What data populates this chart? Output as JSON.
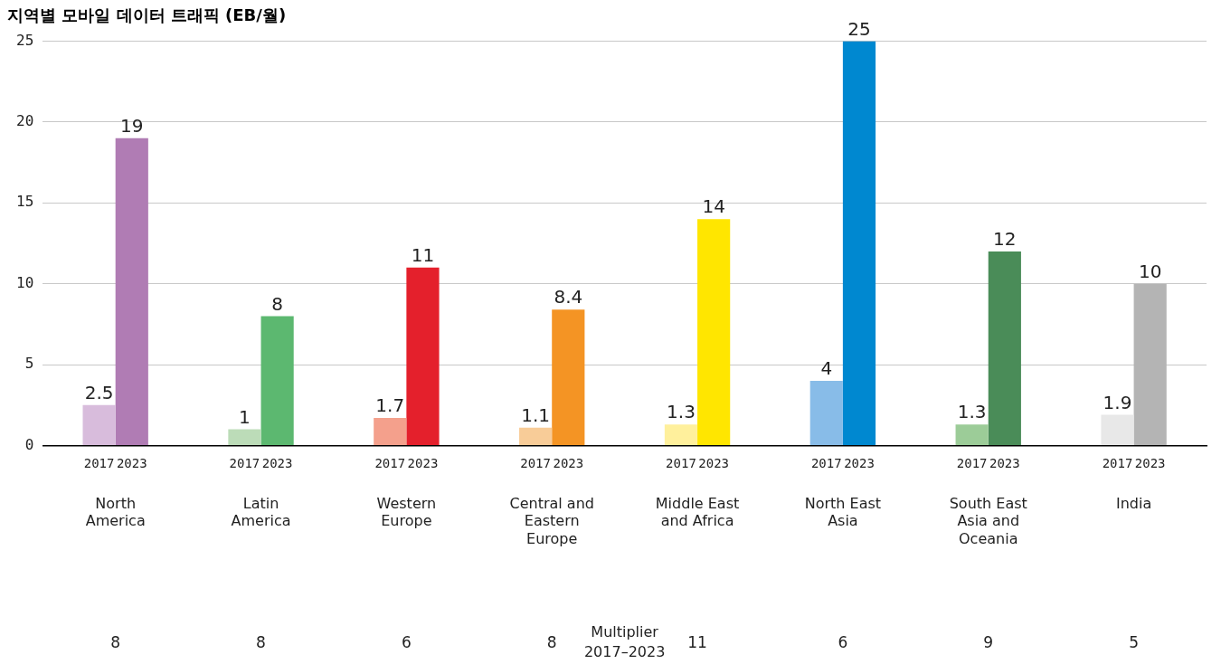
{
  "chart_data": {
    "type": "bar",
    "title": "지역별 모바일 데이터 트래픽 (EB/월)",
    "categories": [
      "North America",
      "Latin America",
      "Western Europe",
      "Central and Eastern Europe",
      "Middle East and Africa",
      "North East Asia",
      "South East Asia and Oceania",
      "India"
    ],
    "series": [
      {
        "name": "2017",
        "colors": [
          "#d8bcdc",
          "#bcdcb8",
          "#f4a08c",
          "#f8cc98",
          "#fff09c",
          "#88bce8",
          "#9ccc98",
          "#e8e8e8"
        ],
        "values": [
          2.5,
          1,
          1.7,
          1.1,
          1.3,
          4,
          1.3,
          1.9
        ]
      },
      {
        "name": "2023",
        "colors": [
          "#b07cb4",
          "#5cb870",
          "#e4202c",
          "#f49424",
          "#ffe600",
          "#0088d0",
          "#4a8c58",
          "#b4b4b4"
        ],
        "values": [
          19,
          8,
          11,
          8.4,
          14,
          25,
          12,
          10
        ]
      }
    ],
    "ylim": [
      0,
      25
    ],
    "yticks": [
      0,
      5,
      10,
      15,
      20,
      25
    ],
    "grid": "y",
    "legend": false,
    "data_labels": true,
    "annotations": [
      "Multiplier 2017–2023",
      "8",
      "8",
      "6",
      "8",
      "11",
      "6",
      "9",
      "5"
    ]
  }
}
